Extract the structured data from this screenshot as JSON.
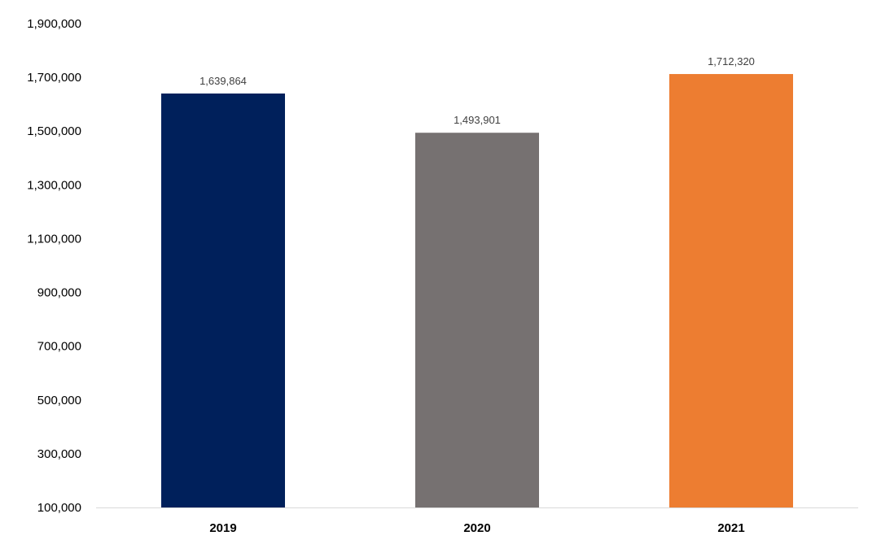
{
  "chart_data": {
    "type": "bar",
    "title": "",
    "xlabel": "",
    "ylabel": "",
    "categories": [
      "2019",
      "2020",
      "2021"
    ],
    "values": [
      1639864,
      1493901,
      1712320
    ],
    "data_labels": [
      "1,639,864",
      "1,493,901",
      "1,712,320"
    ],
    "bar_colors": [
      "#00205b",
      "#767171",
      "#ed7d31"
    ],
    "ylim": [
      100000,
      1900000
    ],
    "yticks": [
      100000,
      300000,
      500000,
      700000,
      900000,
      1100000,
      1300000,
      1500000,
      1700000,
      1900000
    ],
    "ytick_labels": [
      "100,000",
      "300,000",
      "500,000",
      "700,000",
      "900,000",
      "1,100,000",
      "1,300,000",
      "1,500,000",
      "1,700,000",
      "1,900,000"
    ],
    "grid": false,
    "legend": "none"
  }
}
